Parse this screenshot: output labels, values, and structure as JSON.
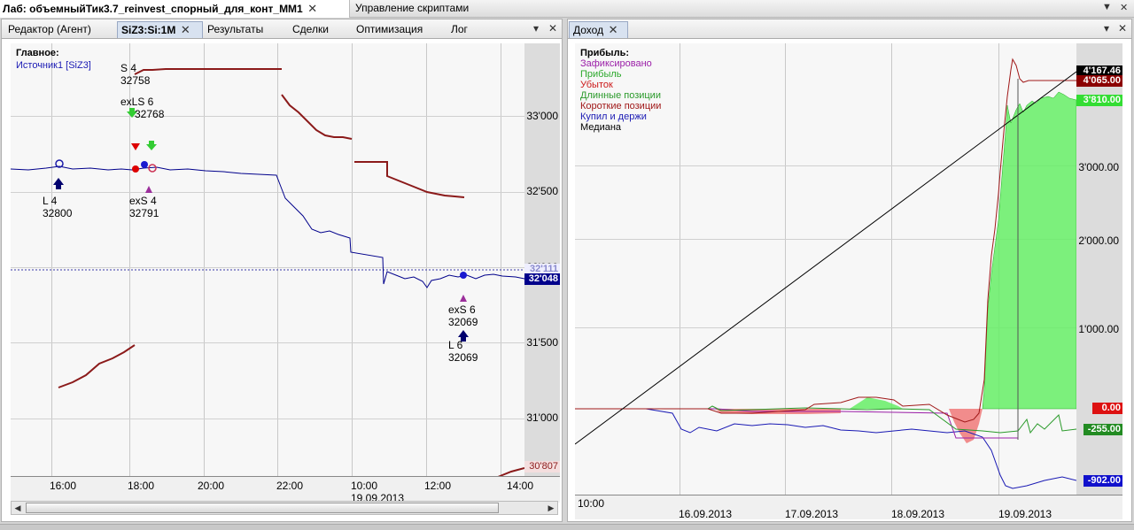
{
  "doc_tabs": [
    {
      "label": "Лаб: объемныйТик3.7_reinvest_спорный_для_конт_ММ1"
    },
    {
      "label": "Управление скриптами"
    }
  ],
  "left_panel": {
    "tabs": [
      "Редактор (Агент)",
      "SiZ3:Si:1M",
      "Результаты",
      "Сделки",
      "Оптимизация",
      "Лог"
    ],
    "active_tab": "SiZ3:Si:1M",
    "legend_title": "Главное:",
    "legend_source": "Источник1 [SiZ3]",
    "y_labels": [
      "33'000",
      "32'500",
      "32'000",
      "31'500",
      "31'000"
    ],
    "x_labels": [
      "16:00",
      "18:00",
      "20:00",
      "22:00",
      "10:00",
      "12:00",
      "14:00"
    ],
    "x_date": "19.09.2013",
    "price_tags": {
      "upper": "32'111",
      "current": "32'048",
      "lower": "30'807"
    },
    "markers": [
      {
        "text": "S 4"
      },
      {
        "text": "32758"
      },
      {
        "text": "exLS 6"
      },
      {
        "text": "32768"
      },
      {
        "text": "L 4"
      },
      {
        "text": "32800"
      },
      {
        "text": "exS 4"
      },
      {
        "text": "32791"
      },
      {
        "text": "exS 6"
      },
      {
        "text": "32069"
      },
      {
        "text": "L 6"
      },
      {
        "text": "32069"
      }
    ],
    "colors": {
      "price": "#00008b",
      "indicator": "#8b1a1a",
      "buy": "#00006e",
      "sell_red": "#dd0000",
      "sell_green": "#33cc33",
      "exit_purple": "#9b2f9b"
    }
  },
  "right_panel": {
    "tab": "Доход",
    "legend_title": "Прибыль:",
    "legend": [
      {
        "label": "Зафиксировано",
        "color": "#9b1fa8"
      },
      {
        "label": "Прибыль",
        "color": "#2aa82a"
      },
      {
        "label": "Убыток",
        "color": "#cc1a1a"
      },
      {
        "label": "Длинные позиции",
        "color": "#2a9a2a"
      },
      {
        "label": "Короткие позиции",
        "color": "#a01818"
      },
      {
        "label": "Купил и держи",
        "color": "#1a1ab4"
      },
      {
        "label": "Медиана",
        "color": "#000000"
      }
    ],
    "y_labels": [
      "3'000.00",
      "2'000.00",
      "1'000.00"
    ],
    "x_time": "10:00",
    "x_labels": [
      "16.09.2013",
      "17.09.2013",
      "18.09.2013",
      "19.09.2013"
    ],
    "value_tags": [
      {
        "text": "4'167.46",
        "bg": "#000000",
        "fg": "#ffffff"
      },
      {
        "text": "4'065.00",
        "bg": "#8b0000",
        "fg": "#ffffff"
      },
      {
        "text": "3'810.00",
        "bg": "#33dd33",
        "fg": "#ffffff"
      },
      {
        "text": "0.00",
        "bg": "#dd1111",
        "fg": "#ffffff"
      },
      {
        "text": "-255.00",
        "bg": "#228b22",
        "fg": "#ffffff"
      },
      {
        "text": "-902.00",
        "bg": "#1010cc",
        "fg": "#ffffff"
      }
    ]
  }
}
